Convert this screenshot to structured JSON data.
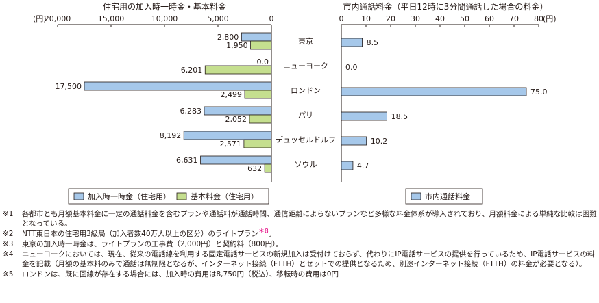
{
  "chart_data": [
    {
      "type": "bar",
      "orientation": "horizontal",
      "direction": "right-to-left",
      "title": "住宅用の加入時一時金・基本料金",
      "unit": "(円)",
      "xlim": [
        0,
        20000
      ],
      "ticks": [
        "20,000",
        "15,000",
        "10,000",
        "5,000",
        "0"
      ],
      "categories": [
        "東京",
        "ニューヨーク",
        "ロンドン",
        "パリ",
        "デュッセルドルフ",
        "ソウル"
      ],
      "series": [
        {
          "name": "加入時一時金（住宅用）",
          "color": "#a6c8ea",
          "values": [
            2800,
            0,
            17500,
            6283,
            8192,
            6631
          ],
          "labels": [
            "2,800",
            "0.0",
            "17,500",
            "6,283",
            "8,192",
            "6,631"
          ]
        },
        {
          "name": "基本料金（住宅用）",
          "color": "#c5df8f",
          "values": [
            1950,
            6201,
            2499,
            2052,
            2571,
            632
          ],
          "labels": [
            "1,950",
            "6,201",
            "2,499",
            "2,052",
            "2,571",
            "632"
          ]
        }
      ],
      "legend": "bottom"
    },
    {
      "type": "bar",
      "orientation": "horizontal",
      "title": "市内通話料金（平日12時に3分間通話した場合の料金）",
      "unit": "(円)",
      "xlim": [
        0,
        80
      ],
      "ticks": [
        "0",
        "10",
        "20",
        "30",
        "40",
        "50",
        "60",
        "70",
        "80"
      ],
      "categories": [
        "東京",
        "ニューヨーク",
        "ロンドン",
        "パリ",
        "デュッセルドルフ",
        "ソウル"
      ],
      "series": [
        {
          "name": "市内通話料金",
          "color": "#a6c8ea",
          "values": [
            8.5,
            0,
            75.0,
            18.5,
            10.2,
            4.7
          ],
          "labels": [
            "8.5",
            "0.0",
            "75.0",
            "18.5",
            "10.2",
            "4.7"
          ]
        }
      ],
      "legend": "bottom"
    }
  ],
  "notes": [
    {
      "mark": "※1",
      "text": "各都市とも月額基本料金に一定の通話料金を含むプランや通話料が通話時間、通信距離によらないプランなど多様な料金体系が導入されており、月額料金による単純な比較は困難となっている。"
    },
    {
      "mark": "※2",
      "text": "NTT東日本の住宅用3級局（加入者数40万人以上の区分）のライトプラン",
      "ref": "＊8",
      "tail": "。"
    },
    {
      "mark": "※3",
      "text": "東京の加入時一時金は、ライトプランの工事費（2,000円）と契約料（800円）。"
    },
    {
      "mark": "※4",
      "text": "ニューヨークにおいては、現在、従来の電話線を利用する固定電話サービスの新規加入は受付けておらず、代わりにIP電話サービスの提供を行っているため、IP電話サービスの料金を記載（月額の基本料のみで通話は無制限となるが、インターネット接続（FTTH）とセットでの提供となるため、別途インターネット接続（FTTH）の料金が必要となる）。"
    },
    {
      "mark": "※5",
      "text": "ロンドンは、既に回線が存在する場合には、加入時の費用は8,750円（税込）、移転時の費用は0円"
    }
  ]
}
